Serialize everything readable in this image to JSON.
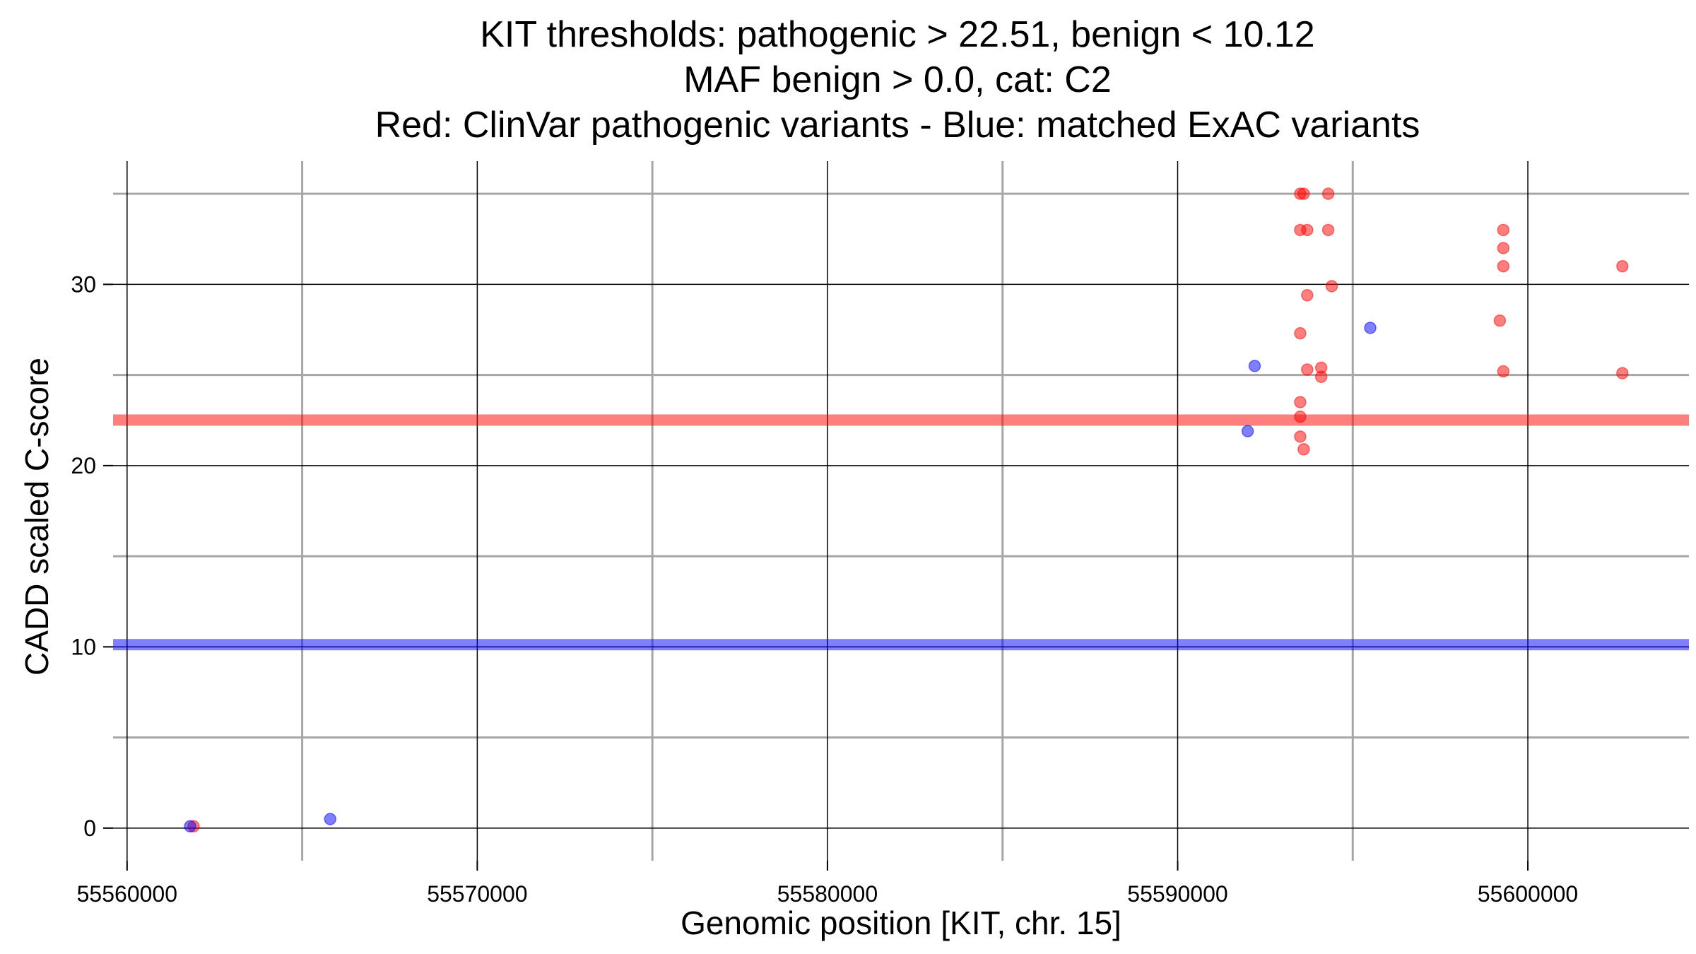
{
  "chart_data": {
    "type": "scatter",
    "title_lines": [
      "KIT thresholds: pathogenic > 22.51, benign < 10.12",
      "MAF benign > 0.0, cat: C2",
      "Red: ClinVar pathogenic variants - Blue: matched ExAC variants"
    ],
    "xlabel": "Genomic position [KIT, chr. 15]",
    "ylabel": "CADD scaled C-score",
    "xlim": [
      55559600,
      55604600
    ],
    "ylim": [
      -1.8,
      36.8
    ],
    "x_ticks": [
      55560000,
      55570000,
      55580000,
      55590000,
      55600000
    ],
    "x_tick_labels": [
      "55560000",
      "55570000",
      "55580000",
      "55590000",
      "55600000"
    ],
    "x_minor_grid": [
      55565000,
      55575000,
      55585000,
      55595000
    ],
    "y_ticks": [
      0,
      10,
      20,
      30
    ],
    "y_tick_labels": [
      "0",
      "10",
      "20",
      "30"
    ],
    "y_minor_grid": [
      5,
      15,
      25,
      35
    ],
    "grid": true,
    "thresholds": [
      {
        "value": 22.51,
        "color": "#ff0000",
        "opacity": 0.5
      },
      {
        "value": 10.12,
        "color": "#0000ff",
        "opacity": 0.5
      }
    ],
    "series": [
      {
        "color": "#ff0000",
        "points": [
          {
            "x": 55561900,
            "y": 0.1
          },
          {
            "x": 55593500,
            "y": 35
          },
          {
            "x": 55593600,
            "y": 35
          },
          {
            "x": 55594300,
            "y": 35
          },
          {
            "x": 55593500,
            "y": 33
          },
          {
            "x": 55593700,
            "y": 33
          },
          {
            "x": 55594300,
            "y": 33
          },
          {
            "x": 55593700,
            "y": 29.4
          },
          {
            "x": 55594400,
            "y": 29.9
          },
          {
            "x": 55593500,
            "y": 27.3
          },
          {
            "x": 55593700,
            "y": 25.3
          },
          {
            "x": 55594100,
            "y": 25.4
          },
          {
            "x": 55594100,
            "y": 24.9
          },
          {
            "x": 55593500,
            "y": 23.5
          },
          {
            "x": 55593500,
            "y": 22.7
          },
          {
            "x": 55593500,
            "y": 21.6
          },
          {
            "x": 55593600,
            "y": 20.9
          },
          {
            "x": 55599300,
            "y": 33
          },
          {
            "x": 55599300,
            "y": 32
          },
          {
            "x": 55599300,
            "y": 31
          },
          {
            "x": 55599200,
            "y": 28
          },
          {
            "x": 55599300,
            "y": 25.2
          },
          {
            "x": 55602700,
            "y": 31
          },
          {
            "x": 55602700,
            "y": 25.1
          }
        ]
      },
      {
        "color": "#0000ff",
        "points": [
          {
            "x": 55561800,
            "y": 0.1
          },
          {
            "x": 55565800,
            "y": 0.5
          },
          {
            "x": 55592200,
            "y": 25.5
          },
          {
            "x": 55592000,
            "y": 21.9
          },
          {
            "x": 55595500,
            "y": 27.6
          }
        ]
      }
    ]
  }
}
